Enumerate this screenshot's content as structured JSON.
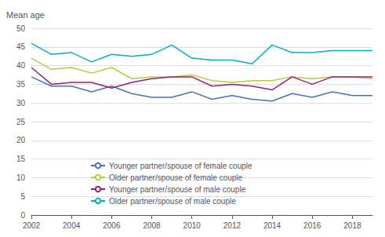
{
  "chart_data": {
    "type": "line",
    "ylabel": "Mean age",
    "x": [
      2002,
      2003,
      2004,
      2005,
      2006,
      2007,
      2008,
      2009,
      2010,
      2011,
      2012,
      2013,
      2014,
      2015,
      2016,
      2017,
      2018,
      2019
    ],
    "series": [
      {
        "name": "Younger partner/spouse of female couple",
        "color": "#4472C4",
        "values": [
          37.0,
          34.5,
          34.5,
          33.0,
          34.5,
          32.5,
          31.5,
          31.5,
          33.0,
          31.0,
          32.0,
          31.0,
          30.5,
          32.5,
          31.5,
          33.0,
          32.0,
          32.0
        ]
      },
      {
        "name": "Older partner/spouse of female couple",
        "color": "#B8CC3C",
        "values": [
          42.0,
          39.0,
          39.5,
          38.0,
          39.5,
          36.5,
          37.0,
          37.0,
          37.5,
          36.0,
          35.5,
          36.0,
          36.0,
          37.0,
          36.5,
          37.0,
          37.0,
          36.5
        ]
      },
      {
        "name": "Younger partner/spouse of male couple",
        "color": "#9C1D72",
        "values": [
          39.5,
          35.0,
          35.5,
          35.5,
          34.0,
          35.5,
          36.5,
          37.0,
          37.0,
          34.5,
          35.0,
          34.5,
          33.5,
          37.0,
          35.0,
          37.0,
          37.0,
          37.0
        ]
      },
      {
        "name": "Older partner/spouse of male couple",
        "color": "#00B0C8",
        "values": [
          46.0,
          43.0,
          43.5,
          41.0,
          43.0,
          42.5,
          43.0,
          45.5,
          42.0,
          41.5,
          41.5,
          40.5,
          45.5,
          43.5,
          43.5,
          44.0,
          44.0,
          44.0
        ]
      }
    ],
    "xlim": [
      2002,
      2019
    ],
    "xticks": [
      2002,
      2004,
      2006,
      2008,
      2010,
      2012,
      2014,
      2016,
      2018
    ],
    "ylim": [
      0,
      50
    ],
    "yticks": [
      0,
      5,
      10,
      15,
      20,
      25,
      30,
      35,
      40,
      45,
      50
    ],
    "grid": true,
    "legend": "lower left"
  }
}
